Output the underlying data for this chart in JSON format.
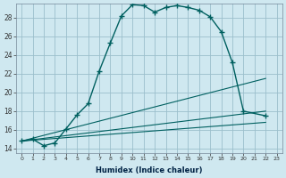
{
  "xlabel": "Humidex (Indice chaleur)",
  "bg_color": "#cfe8f0",
  "grid_color": "#9bbfcc",
  "line_color": "#006060",
  "xlim": [
    -0.5,
    23.5
  ],
  "ylim": [
    13.5,
    29.5
  ],
  "xticks": [
    0,
    1,
    2,
    3,
    4,
    5,
    6,
    7,
    8,
    9,
    10,
    11,
    12,
    13,
    14,
    15,
    16,
    17,
    18,
    19,
    20,
    21,
    22,
    23
  ],
  "yticks": [
    14,
    16,
    18,
    20,
    22,
    24,
    26,
    28
  ],
  "main_curve": {
    "x": [
      0,
      1,
      2,
      3,
      4,
      5,
      6,
      7,
      8,
      9,
      10,
      11,
      12,
      13,
      14,
      15,
      16,
      17,
      18,
      19,
      20,
      22
    ],
    "y": [
      14.8,
      15.0,
      14.3,
      14.6,
      16.1,
      17.6,
      18.8,
      22.3,
      25.3,
      28.2,
      29.4,
      29.3,
      28.6,
      29.1,
      29.3,
      29.1,
      28.8,
      28.1,
      26.5,
      23.2,
      18.0,
      17.5
    ]
  },
  "diag_lines": [
    {
      "x": [
        0,
        22
      ],
      "y": [
        14.8,
        21.5
      ]
    },
    {
      "x": [
        0,
        22
      ],
      "y": [
        14.8,
        18.0
      ]
    },
    {
      "x": [
        0,
        22
      ],
      "y": [
        14.8,
        16.8
      ]
    }
  ]
}
